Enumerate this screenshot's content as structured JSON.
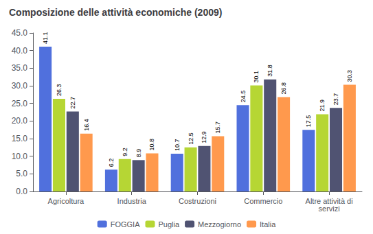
{
  "chart_data": {
    "type": "bar",
    "title": "Composizione delle attività economiche (2009)",
    "categories": [
      "Agricoltura",
      "Industria",
      "Costruzioni",
      "Commercio",
      "Altre attività di\nservizi"
    ],
    "series": [
      {
        "name": "FOGGIA",
        "values": [
          41.1,
          6.2,
          10.7,
          24.5,
          17.5
        ]
      },
      {
        "name": "Puglia",
        "values": [
          26.3,
          9.2,
          12.5,
          30.1,
          21.9
        ]
      },
      {
        "name": "Mezzogiorno",
        "values": [
          22.7,
          8.9,
          12.9,
          31.8,
          23.7
        ]
      },
      {
        "name": "Italia",
        "values": [
          16.4,
          10.8,
          15.7,
          26.8,
          30.3
        ]
      }
    ],
    "ylim": [
      0,
      45
    ],
    "yticks": [
      {
        "value": 0,
        "label": "0.0"
      },
      {
        "value": 5,
        "label": "5.0"
      },
      {
        "value": 10,
        "label": "10.0"
      },
      {
        "value": 15,
        "label": "15.0"
      },
      {
        "value": 20,
        "label": "20.0"
      },
      {
        "value": 25,
        "label": "25.0"
      },
      {
        "value": 30,
        "label": "30.0"
      },
      {
        "value": 35,
        "label": "35.0"
      },
      {
        "value": 40,
        "label": "40.0"
      },
      {
        "value": 45,
        "label": "45.0"
      }
    ],
    "grid": false,
    "legend": "bottom",
    "data_labels": true
  }
}
